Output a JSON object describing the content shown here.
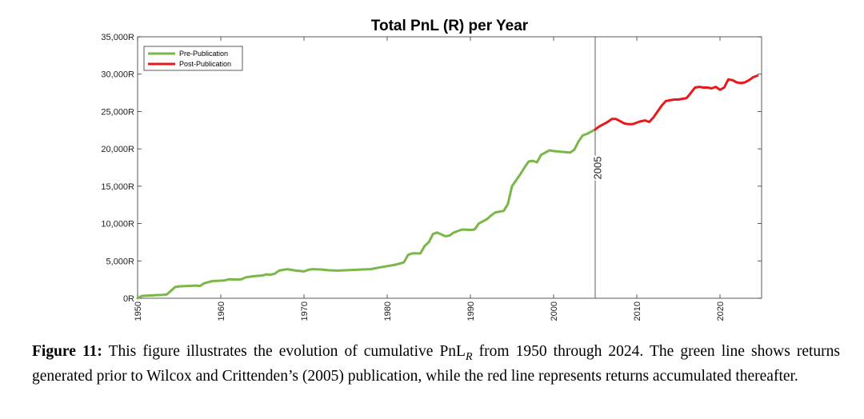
{
  "chart_data": {
    "type": "line",
    "title": "Total PnL (R) per Year",
    "xlabel": "",
    "ylabel": "",
    "xlim": [
      1950,
      2025
    ],
    "ylim": [
      0,
      35000
    ],
    "x_ticks": [
      "1950",
      "1960",
      "1970",
      "1980",
      "1990",
      "2000",
      "2010",
      "2020"
    ],
    "y_ticks": [
      "0R",
      "5,000R",
      "10,000R",
      "15,000R",
      "20,000R",
      "25,000R",
      "30,000R",
      "35,000R"
    ],
    "grid": false,
    "legend_position": "top-left",
    "annotation": {
      "x": 2005,
      "label": "2005"
    },
    "series": [
      {
        "name": "Pre-Publication",
        "color": "#7ab648",
        "x": [
          1950,
          1950.5,
          1951,
          1952,
          1953,
          1953.5,
          1954,
          1954.5,
          1955,
          1956,
          1957,
          1957.5,
          1958,
          1959,
          1960,
          1960.5,
          1961,
          1962,
          1962.5,
          1963,
          1964,
          1965,
          1965.5,
          1966,
          1966.5,
          1967,
          1968,
          1968.5,
          1969,
          1970,
          1970.5,
          1971,
          1972,
          1973,
          1974,
          1975,
          1976,
          1977,
          1978,
          1978.5,
          1979,
          1980,
          1981,
          1982,
          1982.5,
          1983,
          1984,
          1984.5,
          1985,
          1985.5,
          1986,
          1987,
          1987.5,
          1988,
          1989,
          1990,
          1990.5,
          1991,
          1992,
          1992.5,
          1993,
          1994,
          1994.5,
          1995,
          1995.5,
          1996,
          1996.5,
          1997,
          1997.5,
          1998,
          1998.5,
          1999,
          1999.5,
          2000,
          2001,
          2002,
          2002.5,
          2003,
          2003.5,
          2004,
          2005
        ],
        "y": [
          0,
          300,
          350,
          400,
          450,
          500,
          1000,
          1500,
          1600,
          1650,
          1700,
          1650,
          2000,
          2300,
          2350,
          2400,
          2550,
          2500,
          2550,
          2800,
          2950,
          3050,
          3200,
          3150,
          3300,
          3700,
          3900,
          3800,
          3700,
          3600,
          3800,
          3900,
          3850,
          3750,
          3700,
          3750,
          3800,
          3850,
          3900,
          4000,
          4100,
          4300,
          4500,
          4800,
          5800,
          6000,
          6000,
          7000,
          7500,
          8600,
          8800,
          8300,
          8400,
          8800,
          9200,
          9150,
          9200,
          10000,
          10600,
          11100,
          11500,
          11700,
          12600,
          15000,
          15800,
          16600,
          17500,
          18300,
          18400,
          18200,
          19200,
          19500,
          19800,
          19700,
          19600,
          19500,
          19900,
          21000,
          21800,
          22000,
          22600
        ]
      },
      {
        "name": "Post-Publication",
        "color": "#e8191c",
        "x": [
          2005,
          2005.5,
          2006,
          2006.5,
          2007,
          2007.5,
          2008,
          2008.5,
          2009,
          2009.5,
          2010,
          2010.5,
          2011,
          2011.5,
          2012,
          2012.5,
          2013,
          2013.5,
          2014,
          2014.5,
          2015,
          2015.5,
          2016,
          2016.5,
          2017,
          2017.5,
          2018,
          2018.5,
          2019,
          2019.5,
          2020,
          2020.5,
          2021,
          2021.5,
          2022,
          2022.5,
          2023,
          2023.5,
          2024,
          2024.5
        ],
        "y": [
          22600,
          23000,
          23300,
          23600,
          24000,
          24000,
          23700,
          23400,
          23300,
          23300,
          23500,
          23700,
          23800,
          23600,
          24200,
          25000,
          25800,
          26400,
          26500,
          26600,
          26600,
          26700,
          26800,
          27500,
          28200,
          28300,
          28200,
          28200,
          28100,
          28300,
          27900,
          28200,
          29300,
          29200,
          28900,
          28800,
          28900,
          29200,
          29600,
          29800
        ]
      }
    ]
  },
  "caption": {
    "label": "Figure 11:",
    "text_before": " This figure illustrates the evolution of cumulative PnL",
    "subscript": "R",
    "text_after": " from 1950 through 2024. The green line shows returns generated prior to Wilcox and Crittenden’s (2005) publication, while the red line represents returns accumulated thereafter."
  }
}
